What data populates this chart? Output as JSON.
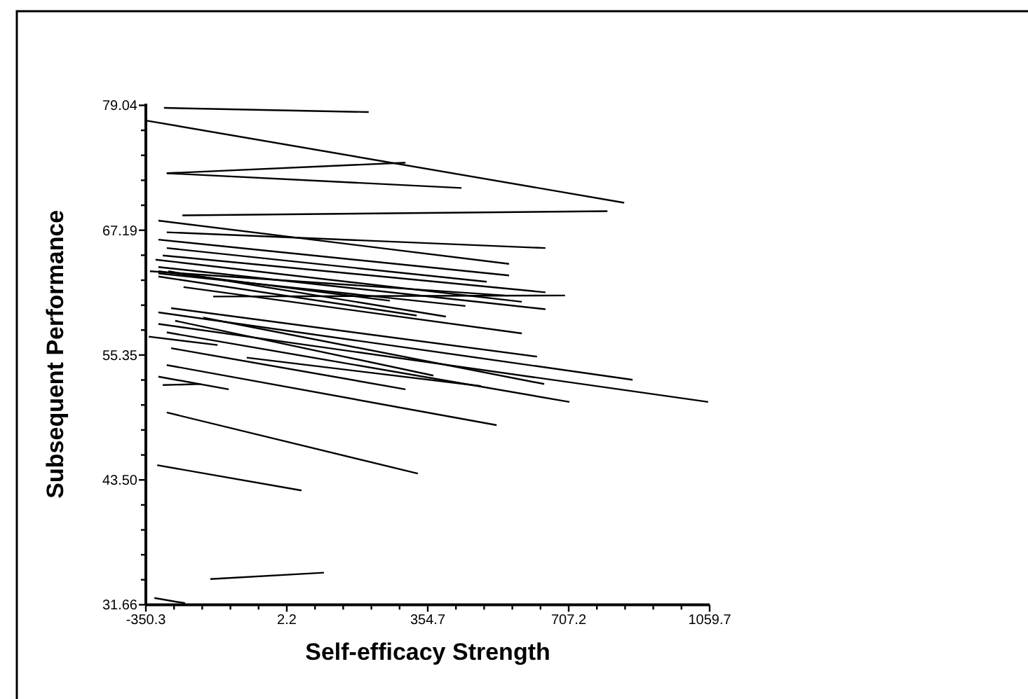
{
  "chart_data": {
    "type": "line",
    "xlabel": "Self-efficacy Strength",
    "ylabel": "Subsequent Performance",
    "xlim": [
      -350.3,
      1059.7
    ],
    "ylim": [
      31.66,
      79.2
    ],
    "xticks": [
      -350.3,
      {
        "value": -279.8,
        "label": null
      },
      {
        "value": -209.3,
        "label": null
      },
      {
        "value": -138.8,
        "label": null
      },
      {
        "value": -68.3,
        "label": null
      },
      2.2,
      {
        "value": 72.7,
        "label": null
      },
      {
        "value": 143.2,
        "label": null
      },
      {
        "value": 213.7,
        "label": null
      },
      {
        "value": 284.2,
        "label": null
      },
      354.7,
      {
        "value": 425.2,
        "label": null
      },
      {
        "value": 495.7,
        "label": null
      },
      {
        "value": 566.2,
        "label": null
      },
      {
        "value": 636.7,
        "label": null
      },
      707.2,
      {
        "value": 777.7,
        "label": null
      },
      {
        "value": 848.2,
        "label": null
      },
      {
        "value": 918.7,
        "label": null
      },
      {
        "value": 989.2,
        "label": null
      },
      1059.7
    ],
    "yticks": [
      31.66,
      {
        "value": 34.03,
        "label": null
      },
      {
        "value": 36.4,
        "label": null
      },
      {
        "value": 38.76,
        "label": null
      },
      {
        "value": 41.13,
        "label": null
      },
      {
        "value": 43.5,
        "label": "43.50"
      },
      {
        "value": 45.87,
        "label": null
      },
      {
        "value": 48.24,
        "label": null
      },
      {
        "value": 50.61,
        "label": null
      },
      {
        "value": 52.98,
        "label": null
      },
      55.35,
      {
        "value": 57.72,
        "label": null
      },
      {
        "value": 60.08,
        "label": null
      },
      {
        "value": 62.45,
        "label": null
      },
      {
        "value": 64.82,
        "label": null
      },
      67.19,
      {
        "value": 69.56,
        "label": null
      },
      {
        "value": 71.93,
        "label": null
      },
      {
        "value": 74.3,
        "label": null
      },
      {
        "value": 76.67,
        "label": null
      },
      79.04
    ],
    "series": [
      {
        "color": "#000000",
        "x": [
          -305,
          207
        ],
        "values": [
          78.8,
          78.4
        ]
      },
      {
        "color": "#000000",
        "x": [
          -350,
          846
        ],
        "values": [
          77.6,
          69.8
        ]
      },
      {
        "color": "#000000",
        "x": [
          -298,
          439
        ],
        "values": [
          72.6,
          71.2
        ]
      },
      {
        "color": "#000000",
        "x": [
          -298,
          299
        ],
        "values": [
          72.6,
          73.6
        ]
      },
      {
        "color": "#000000",
        "x": [
          -259,
          804
        ],
        "values": [
          68.6,
          69.0
        ]
      },
      {
        "color": "#000000",
        "x": [
          -319,
          558
        ],
        "values": [
          68.1,
          64.0
        ]
      },
      {
        "color": "#000000",
        "x": [
          -298,
          649
        ],
        "values": [
          67.0,
          65.5
        ]
      },
      {
        "color": "#000000",
        "x": [
          -319,
          558
        ],
        "values": [
          66.3,
          62.9
        ]
      },
      {
        "color": "#000000",
        "x": [
          -298,
          502
        ],
        "values": [
          65.5,
          62.3
        ]
      },
      {
        "color": "#000000",
        "x": [
          -308,
          649
        ],
        "values": [
          64.8,
          61.3
        ]
      },
      {
        "color": "#000000",
        "x": [
          -326,
          590
        ],
        "values": [
          64.4,
          60.4
        ]
      },
      {
        "color": "#000000",
        "x": [
          -319,
          649
        ],
        "values": [
          63.7,
          59.7
        ]
      },
      {
        "color": "#000000",
        "x": [
          -340,
          548
        ],
        "values": [
          63.3,
          61.0
        ]
      },
      {
        "color": "#000000",
        "x": [
          -182,
          698
        ],
        "values": [
          60.9,
          61.0
        ]
      },
      {
        "color": "#000000",
        "x": [
          -256,
          590
        ],
        "values": [
          61.8,
          57.4
        ]
      },
      {
        "color": "#000000",
        "x": [
          -319,
          449
        ],
        "values": [
          63.1,
          60.0
        ]
      },
      {
        "color": "#000000",
        "x": [
          -294,
          400
        ],
        "values": [
          63.3,
          59.0
        ]
      },
      {
        "color": "#000000",
        "x": [
          -319,
          327
        ],
        "values": [
          62.8,
          59.1
        ]
      },
      {
        "color": "#000000",
        "x": [
          -319,
          260
        ],
        "values": [
          63.3,
          60.5
        ]
      },
      {
        "color": "#000000",
        "x": [
          -287,
          628
        ],
        "values": [
          59.8,
          55.2
        ]
      },
      {
        "color": "#000000",
        "x": [
          -319,
          867
        ],
        "values": [
          59.4,
          53.0
        ]
      },
      {
        "color": "#000000",
        "x": [
          -207,
          646
        ],
        "values": [
          58.9,
          52.6
        ]
      },
      {
        "color": "#000000",
        "x": [
          -319,
          1056
        ],
        "values": [
          58.3,
          50.9
        ]
      },
      {
        "color": "#000000",
        "x": [
          -277,
          369
        ],
        "values": [
          58.6,
          53.4
        ]
      },
      {
        "color": "#000000",
        "x": [
          -298,
          709
        ],
        "values": [
          57.5,
          50.9
        ]
      },
      {
        "color": "#000000",
        "x": [
          -343,
          -171
        ],
        "values": [
          57.1,
          56.3
        ]
      },
      {
        "color": "#000000",
        "x": [
          -287,
          299
        ],
        "values": [
          56.0,
          52.1
        ]
      },
      {
        "color": "#000000",
        "x": [
          -98,
          488
        ],
        "values": [
          55.1,
          52.4
        ]
      },
      {
        "color": "#000000",
        "x": [
          -298,
          527
        ],
        "values": [
          54.4,
          48.7
        ]
      },
      {
        "color": "#000000",
        "x": [
          -319,
          -143
        ],
        "values": [
          53.3,
          52.1
        ]
      },
      {
        "color": "#000000",
        "x": [
          -308,
          -214
        ],
        "values": [
          52.5,
          52.6
        ]
      },
      {
        "color": "#000000",
        "x": [
          -298,
          330
        ],
        "values": [
          49.9,
          44.1
        ]
      },
      {
        "color": "#000000",
        "x": [
          -322,
          39
        ],
        "values": [
          44.9,
          42.5
        ]
      },
      {
        "color": "#000000",
        "x": [
          -189,
          95
        ],
        "values": [
          34.1,
          34.7
        ]
      },
      {
        "color": "#000000",
        "x": [
          -329,
          -252
        ],
        "values": [
          32.3,
          31.8
        ]
      }
    ]
  }
}
